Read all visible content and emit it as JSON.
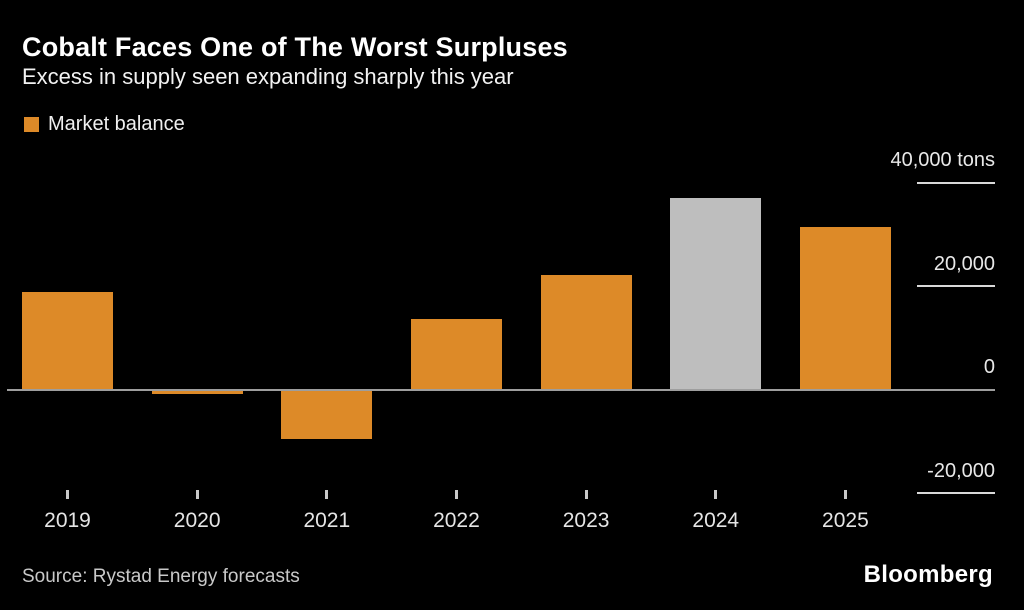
{
  "chart_data": {
    "type": "bar",
    "title": "Cobalt Faces One of The Worst Surpluses",
    "subtitle": "Excess in supply seen expanding sharply this year",
    "legend": [
      {
        "label": "Market balance",
        "color": "#DD8A28"
      }
    ],
    "categories": [
      "2019",
      "2020",
      "2021",
      "2022",
      "2023",
      "2024",
      "2025"
    ],
    "series": [
      {
        "name": "Market balance",
        "values": [
          18700,
          -700,
          -9500,
          13500,
          22000,
          37000,
          31300
        ]
      }
    ],
    "bar_colors": [
      "#DD8A28",
      "#DD8A28",
      "#DD8A28",
      "#DD8A28",
      "#DD8A28",
      "#BEBEBE",
      "#DD8A28"
    ],
    "unit": "tons",
    "xlabel": "",
    "ylabel": "tons",
    "y_axis": {
      "side": "right",
      "ylim": [
        -27000,
        44000
      ],
      "ticks": [
        {
          "value": 40000,
          "label": "40,000 tons"
        },
        {
          "value": 20000,
          "label": "20,000"
        },
        {
          "value": 0,
          "label": "0"
        },
        {
          "value": -20000,
          "label": "-20,000"
        }
      ]
    },
    "grid": "short right-side stub lines below each y label; full-width zero baseline",
    "legend_position": "top-left",
    "source": "Source: Rystad Energy forecasts",
    "brand": "Bloomberg"
  },
  "colors": {
    "background": "#000000",
    "bar_orange": "#DD8A28",
    "bar_gray_2024": "#BEBEBE",
    "zero_line": "#9E9E9E",
    "grid_stub": "#D8D8D8",
    "axis_text": "#E8E8E8",
    "title_text": "#FFFFFF",
    "source_text": "#C9C9C9"
  }
}
